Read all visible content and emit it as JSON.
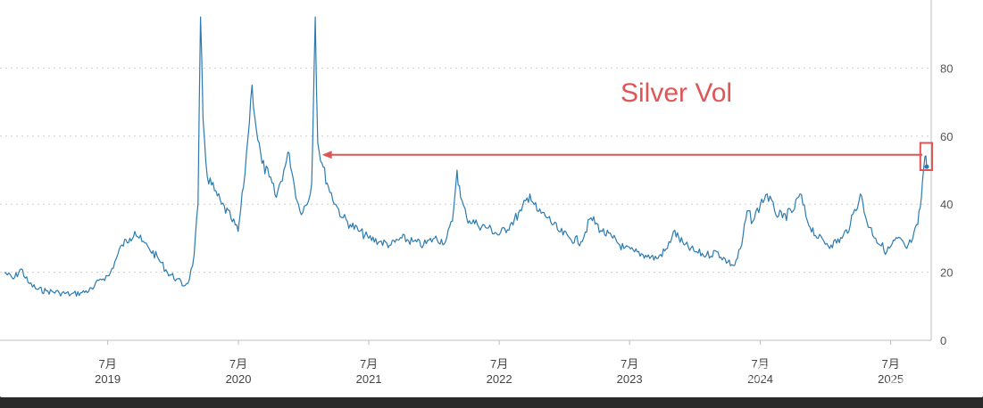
{
  "chart_data": {
    "type": "line",
    "title": "",
    "xlabel": "",
    "ylabel": "",
    "ylim": [
      0,
      100
    ],
    "y_ticks": [
      0,
      20,
      40,
      60,
      80
    ],
    "y_tick_labels": [
      "0",
      "20",
      "40",
      "60",
      "80"
    ],
    "x_range": [
      "2018-09-15",
      "2025-10-10"
    ],
    "x_ticks": [
      {
        "date": "2019-07-01",
        "month": "7月",
        "year": "2019"
      },
      {
        "date": "2020-07-01",
        "month": "7月",
        "year": "2020"
      },
      {
        "date": "2021-07-01",
        "month": "7月",
        "year": "2021"
      },
      {
        "date": "2022-07-01",
        "month": "7月",
        "year": "2022"
      },
      {
        "date": "2023-07-01",
        "month": "7月",
        "year": "2023"
      },
      {
        "date": "2024-07-01",
        "month": "7月",
        "year": "2024"
      },
      {
        "date": "2025-07-01",
        "month": "7月",
        "year": "2025"
      }
    ],
    "grid": "horizontal-dotted",
    "series": [
      {
        "color": "#2b7bb0",
        "points": [
          [
            "2018-09-15",
            20
          ],
          [
            "2018-10-10",
            18
          ],
          [
            "2018-11-01",
            21
          ],
          [
            "2018-11-20",
            17
          ],
          [
            "2018-12-15",
            15
          ],
          [
            "2019-01-10",
            14.5
          ],
          [
            "2019-02-15",
            14
          ],
          [
            "2019-03-20",
            13.5
          ],
          [
            "2019-04-20",
            14
          ],
          [
            "2019-05-20",
            15
          ],
          [
            "2019-06-10",
            18
          ],
          [
            "2019-07-05",
            19
          ],
          [
            "2019-07-25",
            24
          ],
          [
            "2019-08-10",
            28
          ],
          [
            "2019-09-01",
            30
          ],
          [
            "2019-09-15",
            32
          ],
          [
            "2019-10-05",
            29
          ],
          [
            "2019-10-25",
            27
          ],
          [
            "2019-11-20",
            24
          ],
          [
            "2019-12-15",
            20
          ],
          [
            "2020-01-10",
            18
          ],
          [
            "2020-01-30",
            16
          ],
          [
            "2020-02-15",
            18
          ],
          [
            "2020-02-28",
            25
          ],
          [
            "2020-03-10",
            40
          ],
          [
            "2020-03-17",
            95
          ],
          [
            "2020-03-24",
            65
          ],
          [
            "2020-04-05",
            48
          ],
          [
            "2020-04-25",
            44
          ],
          [
            "2020-05-15",
            40
          ],
          [
            "2020-06-10",
            36
          ],
          [
            "2020-06-30",
            32
          ],
          [
            "2020-07-15",
            45
          ],
          [
            "2020-07-28",
            60
          ],
          [
            "2020-08-08",
            75
          ],
          [
            "2020-08-20",
            62
          ],
          [
            "2020-09-05",
            52
          ],
          [
            "2020-09-25",
            48
          ],
          [
            "2020-10-15",
            42
          ],
          [
            "2020-11-05",
            50
          ],
          [
            "2020-11-20",
            55
          ],
          [
            "2020-12-05",
            45
          ],
          [
            "2020-12-20",
            38
          ],
          [
            "2021-01-10",
            40
          ],
          [
            "2021-01-22",
            46
          ],
          [
            "2021-02-01",
            95
          ],
          [
            "2021-02-08",
            58
          ],
          [
            "2021-02-20",
            52
          ],
          [
            "2021-03-10",
            45
          ],
          [
            "2021-03-30",
            40
          ],
          [
            "2021-04-20",
            36
          ],
          [
            "2021-05-10",
            34
          ],
          [
            "2021-06-05",
            32
          ],
          [
            "2021-07-01",
            30
          ],
          [
            "2021-08-01",
            29
          ],
          [
            "2021-09-01",
            28
          ],
          [
            "2021-10-01",
            30
          ],
          [
            "2021-11-01",
            29
          ],
          [
            "2021-12-01",
            28
          ],
          [
            "2022-01-01",
            30
          ],
          [
            "2022-02-01",
            29
          ],
          [
            "2022-02-20",
            35
          ],
          [
            "2022-03-05",
            50
          ],
          [
            "2022-03-15",
            42
          ],
          [
            "2022-04-01",
            36
          ],
          [
            "2022-05-01",
            34
          ],
          [
            "2022-06-01",
            33
          ],
          [
            "2022-07-01",
            31
          ],
          [
            "2022-08-01",
            34
          ],
          [
            "2022-09-01",
            38
          ],
          [
            "2022-09-25",
            43
          ],
          [
            "2022-10-15",
            38
          ],
          [
            "2022-11-15",
            36
          ],
          [
            "2022-12-15",
            32
          ],
          [
            "2023-01-15",
            30
          ],
          [
            "2023-02-15",
            29
          ],
          [
            "2023-03-15",
            36
          ],
          [
            "2023-04-15",
            32
          ],
          [
            "2023-05-15",
            30
          ],
          [
            "2023-06-15",
            27
          ],
          [
            "2023-07-15",
            26
          ],
          [
            "2023-08-15",
            25
          ],
          [
            "2023-09-15",
            24
          ],
          [
            "2023-10-15",
            27
          ],
          [
            "2023-11-01",
            32
          ],
          [
            "2023-12-01",
            28
          ],
          [
            "2024-01-01",
            26
          ],
          [
            "2024-02-01",
            25
          ],
          [
            "2024-03-01",
            26
          ],
          [
            "2024-04-01",
            23
          ],
          [
            "2024-04-20",
            22
          ],
          [
            "2024-05-10",
            28
          ],
          [
            "2024-05-25",
            38
          ],
          [
            "2024-06-10",
            35
          ],
          [
            "2024-07-01",
            40
          ],
          [
            "2024-07-20",
            43
          ],
          [
            "2024-08-10",
            38
          ],
          [
            "2024-09-01",
            36
          ],
          [
            "2024-10-01",
            38
          ],
          [
            "2024-10-20",
            43
          ],
          [
            "2024-11-10",
            35
          ],
          [
            "2024-12-10",
            30
          ],
          [
            "2025-01-15",
            28
          ],
          [
            "2025-02-15",
            30
          ],
          [
            "2025-03-10",
            34
          ],
          [
            "2025-04-07",
            43
          ],
          [
            "2025-04-25",
            35
          ],
          [
            "2025-05-20",
            30
          ],
          [
            "2025-06-20",
            26
          ],
          [
            "2025-07-20",
            30
          ],
          [
            "2025-08-15",
            27
          ],
          [
            "2025-09-01",
            30
          ],
          [
            "2025-09-15",
            34
          ],
          [
            "2025-09-25",
            42
          ],
          [
            "2025-10-01",
            50
          ],
          [
            "2025-10-05",
            54
          ],
          [
            "2025-10-10",
            51
          ]
        ]
      }
    ],
    "annotations": [
      {
        "text": "Silver Vol",
        "color": "#e05555"
      },
      {
        "arrow_from": [
          "2025-10-05",
          54.5
        ],
        "arrow_to": [
          "2021-02-20",
          54.5
        ],
        "color": "#e05555"
      },
      {
        "highlight_box": {
          "x0": "2025-09-22",
          "x1": "2025-10-25",
          "y0": 50,
          "y1": 58
        },
        "color": "#e05555"
      }
    ]
  },
  "annotation_label": "Silver Vol",
  "watermark": "雪球：Capital_12"
}
